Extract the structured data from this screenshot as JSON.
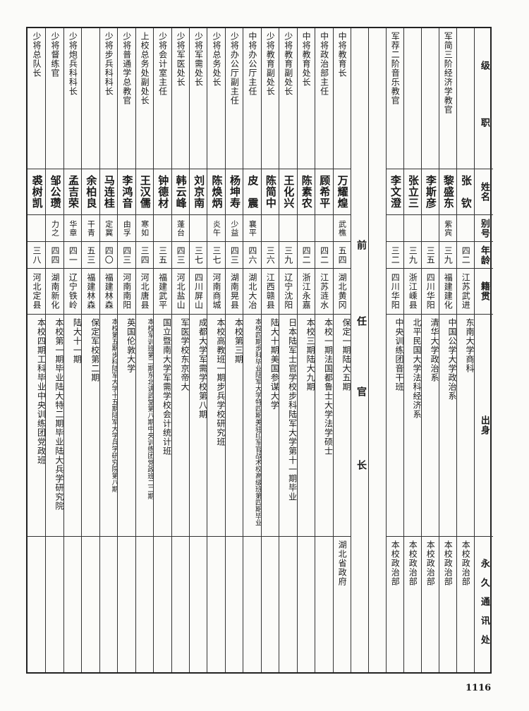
{
  "header": {
    "rank": "级　　职",
    "name": "姓名",
    "alias": "别号",
    "age": "年龄",
    "origin": "籍贯",
    "education": "出身",
    "address": "永久通讯处"
  },
  "current_staff": [
    {
      "rank": "",
      "name": "张　钦",
      "alias": "",
      "age": "四二",
      "origin": "江苏武进",
      "education": [
        "东南大学商科"
      ],
      "address": "本校政治部"
    },
    {
      "rank": "军简三阶经济学教官",
      "name": "黎盛东",
      "alias": "紫宾",
      "age": "三九",
      "origin": "福建建化",
      "education": [
        "中国公学大学政治系"
      ],
      "address": "本校政治部"
    },
    {
      "rank": "",
      "name": "李斯彦",
      "alias": "",
      "age": "三五",
      "origin": "四川华阳",
      "education": [
        "清华大学政治系"
      ],
      "address": "本校政治部"
    },
    {
      "rank": "",
      "name": "张立三",
      "alias": "",
      "age": "三九",
      "origin": "浙江嵊县",
      "education": [
        "北平民国大学法科经济系"
      ],
      "address": "本校政治部"
    },
    {
      "rank": "军荐二阶音乐教官",
      "name": "李文澄",
      "alias": "",
      "age": "三二",
      "origin": "四川华阳",
      "education": [
        "中央训练团音干班"
      ],
      "address": "本校政治部"
    }
  ],
  "predecessor_label": [
    "前",
    "任",
    "官",
    "长"
  ],
  "predecessors": [
    {
      "rank": "中将教育长",
      "name": "万耀煌",
      "alias": "武樵",
      "age": "五四",
      "origin": "湖北黄冈",
      "education": [
        "保定一期陆大五期"
      ],
      "address": "湖北省政府"
    },
    {
      "rank": "中将政治部主任",
      "name": "顾希平",
      "alias": "",
      "age": "四二",
      "origin": "江苏涟水",
      "education": [
        "本校一期法国都鲁士大学法学硕士"
      ],
      "address": ""
    },
    {
      "rank": "中将教育处长",
      "name": "陈素农",
      "alias": "",
      "age": "四二",
      "origin": "浙江永嘉",
      "education": [
        "本校三期陆大九期"
      ],
      "address": ""
    },
    {
      "rank": "少将教育副处长",
      "name": "王化兴",
      "alias": "",
      "age": "三九",
      "origin": "辽宁沈阳",
      "education": [
        "日本陆军士官学校步科陆军大学第十一期毕业"
      ],
      "address": ""
    },
    {
      "rank": "少将教育副处长",
      "name": "陈简中",
      "alias": "",
      "age": "三六",
      "origin": "江西赣县",
      "education": [
        "陆大十期美国参谋大学"
      ],
      "address": ""
    },
    {
      "rank": "中将办公厅主任",
      "name": "皮　震",
      "alias": "襄平",
      "age": "四六",
      "origin": "湖北大冶",
      "education": [
        "本校四期步科毕业陆军大学特四期美驻印军官战术校高级班",
        "第四期毕业"
      ],
      "address": ""
    },
    {
      "rank": "少将办公厅副主任",
      "name": "杨坤寿",
      "alias": "少益",
      "age": "四三",
      "origin": "湖南晃县",
      "education": [
        "本校第三期"
      ],
      "address": ""
    },
    {
      "rank": "少将总务处长",
      "name": "陈焕炳",
      "alias": "炎午",
      "age": "三七",
      "origin": "河南商城",
      "education": [
        "本校高教班一期步兵学校研究班"
      ],
      "address": ""
    },
    {
      "rank": "少将军需处长",
      "name": "刘京南",
      "alias": "",
      "age": "三七",
      "origin": "四川屏山",
      "education": [
        "成都大学军需学校第八期"
      ],
      "address": ""
    },
    {
      "rank": "少将军医处长",
      "name": "韩云峰",
      "alias": "蓬台",
      "age": "四三",
      "origin": "河北盐山",
      "education": [
        "军医学校东京帝大"
      ],
      "address": ""
    },
    {
      "rank": "少将会计室主任",
      "name": "钟德材",
      "alias": "",
      "age": "三五",
      "origin": "福建武平",
      "education": [
        "国立暨南大学军需学校会计统计班"
      ],
      "address": ""
    },
    {
      "rank": "上校总务处副处长",
      "name": "王汉儒",
      "alias": "寒如",
      "age": "三四",
      "origin": "河北唐县",
      "education": [
        "本校军训班第二期东北讲武堂第八期中央训练团",
        "党政班二二期"
      ],
      "address": ""
    },
    {
      "rank": "少将普通学总教官",
      "name": "李鸿音",
      "alias": "由孚",
      "age": "四三",
      "origin": "河南南阳",
      "education": [
        "英国伦敦大学"
      ],
      "address": ""
    },
    {
      "rank": "少将步兵科科长",
      "name": "马连桂",
      "alias": "定冀",
      "age": "四〇",
      "origin": "福建林森",
      "education": [
        "本校第五期步科陆军大学十五期陆军大学",
        "兵学研究院第八期"
      ],
      "address": ""
    },
    {
      "rank": "",
      "name": "余柏良",
      "alias": "干青",
      "age": "五三",
      "origin": "福建林森",
      "education": [
        "保定军校第二期"
      ],
      "address": ""
    },
    {
      "rank": "少将炮兵科科长",
      "name": "孟吉荣",
      "alias": "华章",
      "age": "四一",
      "origin": "辽宁铁岭",
      "education": [
        "陆大十一期"
      ],
      "address": ""
    },
    {
      "rank": "少将督练官",
      "name": "邹公瓒",
      "alias": "力之",
      "age": "四四",
      "origin": "湖南新化",
      "education": [
        "本校第一期毕业陆大特二期毕业陆大兵学研究院"
      ],
      "address": ""
    },
    {
      "rank": "少将总队长",
      "name": "裘树凯",
      "alias": "",
      "age": "三八",
      "origin": "河北定县",
      "education": [
        "本校四期工科毕业中央训练团党政班"
      ],
      "address": ""
    }
  ],
  "page_number": "1116"
}
